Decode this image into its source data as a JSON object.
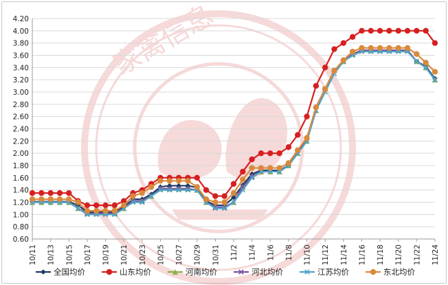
{
  "chart_data": {
    "type": "line",
    "title": "",
    "xlabel": "",
    "ylabel": "",
    "ylim": [
      0.6,
      4.2
    ],
    "yticks": [
      "0.60",
      "0.80",
      "1.00",
      "1.20",
      "1.40",
      "1.60",
      "1.80",
      "2.00",
      "2.20",
      "2.40",
      "2.60",
      "2.80",
      "3.00",
      "3.20",
      "3.40",
      "3.60",
      "3.80",
      "4.00",
      "4.20"
    ],
    "xticks": [
      "10/11",
      "10/13",
      "10/15",
      "10/17",
      "10/19",
      "10/21",
      "10/23",
      "10/25",
      "10/27",
      "10/29",
      "10/31",
      "11/2",
      "11/4",
      "11/6",
      "11/8",
      "11/10",
      "11/12",
      "11/14",
      "11/16",
      "11/18",
      "11/20",
      "11/22",
      "11/24"
    ],
    "x": [
      "10/11",
      "10/12",
      "10/13",
      "10/14",
      "10/15",
      "10/16",
      "10/17",
      "10/18",
      "10/19",
      "10/20",
      "10/21",
      "10/22",
      "10/23",
      "10/24",
      "10/25",
      "10/26",
      "10/27",
      "10/28",
      "10/29",
      "10/30",
      "10/31",
      "11/1",
      "11/2",
      "11/3",
      "11/4",
      "11/5",
      "11/6",
      "11/7",
      "11/8",
      "11/9",
      "11/10",
      "11/11",
      "11/12",
      "11/13",
      "11/14",
      "11/15",
      "11/16",
      "11/17",
      "11/18",
      "11/19",
      "11/20",
      "11/21",
      "11/22",
      "11/23",
      "11/24"
    ],
    "grid": true,
    "legend_position": "bottom",
    "series": [
      {
        "name": "全国均价",
        "color": "#1f3864",
        "marker": "diamond",
        "values": [
          1.21,
          1.21,
          1.21,
          1.21,
          1.21,
          1.15,
          1.04,
          1.04,
          1.04,
          1.04,
          1.12,
          1.25,
          1.25,
          1.33,
          1.45,
          1.47,
          1.47,
          1.47,
          1.44,
          1.22,
          1.15,
          1.15,
          1.28,
          1.48,
          1.66,
          1.72,
          1.72,
          1.72,
          1.8,
          2.02,
          2.22,
          2.75,
          3.05,
          3.35,
          3.5,
          3.62,
          3.68,
          3.68,
          3.68,
          3.68,
          3.68,
          3.68,
          3.5,
          3.42,
          3.22
        ]
      },
      {
        "name": "山东均价",
        "color": "#d62020",
        "marker": "circle",
        "values": [
          1.35,
          1.35,
          1.35,
          1.35,
          1.35,
          1.22,
          1.15,
          1.15,
          1.15,
          1.15,
          1.22,
          1.35,
          1.4,
          1.5,
          1.6,
          1.6,
          1.6,
          1.6,
          1.6,
          1.4,
          1.3,
          1.3,
          1.5,
          1.7,
          1.9,
          2.0,
          2.0,
          2.0,
          2.1,
          2.3,
          2.6,
          3.1,
          3.4,
          3.7,
          3.8,
          3.9,
          4.0,
          4.0,
          4.0,
          4.0,
          4.0,
          4.0,
          4.0,
          4.0,
          3.8
        ]
      },
      {
        "name": "河南均价",
        "color": "#8fb04a",
        "marker": "triangle",
        "values": [
          1.2,
          1.2,
          1.2,
          1.2,
          1.2,
          1.1,
          1.02,
          1.02,
          1.02,
          1.02,
          1.1,
          1.22,
          1.22,
          1.3,
          1.42,
          1.42,
          1.42,
          1.42,
          1.4,
          1.2,
          1.12,
          1.12,
          1.2,
          1.45,
          1.62,
          1.7,
          1.7,
          1.7,
          1.8,
          2.0,
          2.2,
          2.7,
          3.05,
          3.35,
          3.5,
          3.62,
          3.68,
          3.68,
          3.68,
          3.68,
          3.68,
          3.68,
          3.5,
          3.4,
          3.2
        ]
      },
      {
        "name": "河北均价",
        "color": "#7b4f9e",
        "marker": "x",
        "values": [
          1.2,
          1.2,
          1.2,
          1.2,
          1.2,
          1.1,
          1.02,
          1.02,
          1.02,
          1.02,
          1.1,
          1.22,
          1.22,
          1.3,
          1.42,
          1.42,
          1.42,
          1.42,
          1.4,
          1.2,
          1.12,
          1.12,
          1.2,
          1.45,
          1.62,
          1.7,
          1.7,
          1.7,
          1.8,
          2.0,
          2.2,
          2.7,
          3.05,
          3.35,
          3.5,
          3.62,
          3.68,
          3.68,
          3.68,
          3.68,
          3.68,
          3.68,
          3.5,
          3.4,
          3.2
        ]
      },
      {
        "name": "江苏均价",
        "color": "#4fa3c7",
        "marker": "x",
        "values": [
          1.2,
          1.2,
          1.2,
          1.2,
          1.2,
          1.1,
          1.0,
          1.0,
          1.0,
          1.0,
          1.1,
          1.2,
          1.2,
          1.3,
          1.4,
          1.4,
          1.4,
          1.4,
          1.4,
          1.2,
          1.1,
          1.1,
          1.2,
          1.4,
          1.6,
          1.7,
          1.7,
          1.7,
          1.8,
          2.0,
          2.2,
          2.7,
          3.0,
          3.3,
          3.5,
          3.6,
          3.66,
          3.66,
          3.66,
          3.66,
          3.66,
          3.66,
          3.5,
          3.4,
          3.2
        ]
      },
      {
        "name": "东北均价",
        "color": "#d98a3c",
        "marker": "circle",
        "values": [
          1.25,
          1.25,
          1.25,
          1.25,
          1.25,
          1.2,
          1.06,
          1.06,
          1.06,
          1.06,
          1.15,
          1.3,
          1.35,
          1.45,
          1.55,
          1.55,
          1.55,
          1.55,
          1.45,
          1.25,
          1.2,
          1.2,
          1.35,
          1.57,
          1.76,
          1.76,
          1.76,
          1.76,
          1.84,
          2.05,
          2.25,
          2.75,
          3.05,
          3.35,
          3.52,
          3.66,
          3.72,
          3.72,
          3.72,
          3.72,
          3.72,
          3.72,
          3.62,
          3.48,
          3.33
        ]
      }
    ]
  }
}
